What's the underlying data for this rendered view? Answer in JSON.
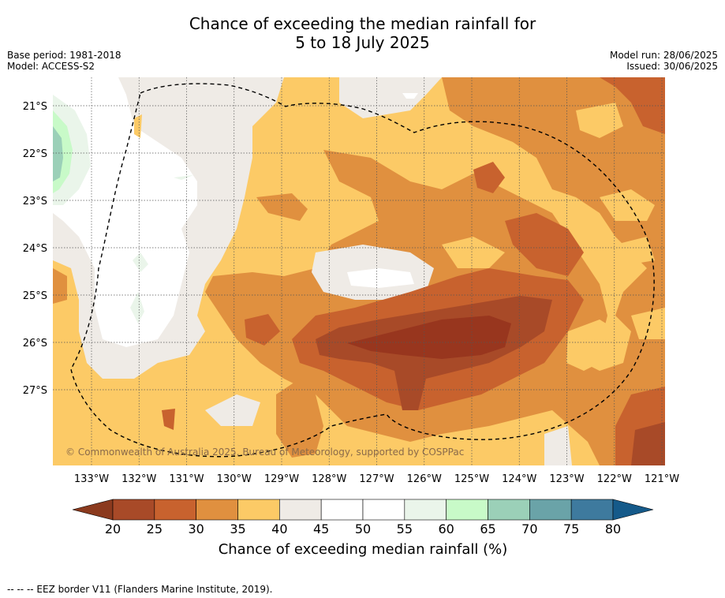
{
  "title": {
    "line1": "Chance of exceeding the median rainfall for",
    "line2": "5 to 18 July 2025"
  },
  "meta": {
    "base_period": "Base period: 1981-2018",
    "model": "Model: ACCESS-S2",
    "model_run": "Model run: 28/06/2025",
    "issued": "Issued: 30/06/2025"
  },
  "map": {
    "lon_labels": [
      "133°W",
      "132°W",
      "131°W",
      "130°W",
      "129°W",
      "128°W",
      "127°W",
      "126°W",
      "125°W",
      "124°W",
      "123°W",
      "122°W",
      "121°W"
    ],
    "lat_labels": [
      "21°S",
      "22°S",
      "23°S",
      "24°S",
      "25°S",
      "26°S",
      "27°S"
    ],
    "copyright": "© Commonwealth of Australia 2025, Bureau of Meteorology, supported by COSPPac"
  },
  "legend": {
    "ticks": [
      "20",
      "25",
      "30",
      "35",
      "40",
      "45",
      "50",
      "55",
      "60",
      "65",
      "70",
      "75",
      "80"
    ],
    "label": "Chance of exceeding median rainfall (%)",
    "under_color": "#8b3a1e",
    "over_color": "#155a8a",
    "colors": [
      "#a84a28",
      "#c8622e",
      "#e0903f",
      "#fcca66",
      "#efebe6",
      "#ffffff",
      "#ffffff",
      "#eaf5ea",
      "#c8fac8",
      "#9bd0b8",
      "#6aa3a8",
      "#3e7a9e"
    ]
  },
  "footer": "--  --  -- EEZ border V11 (Flanders Marine Institute, 2019)."
}
